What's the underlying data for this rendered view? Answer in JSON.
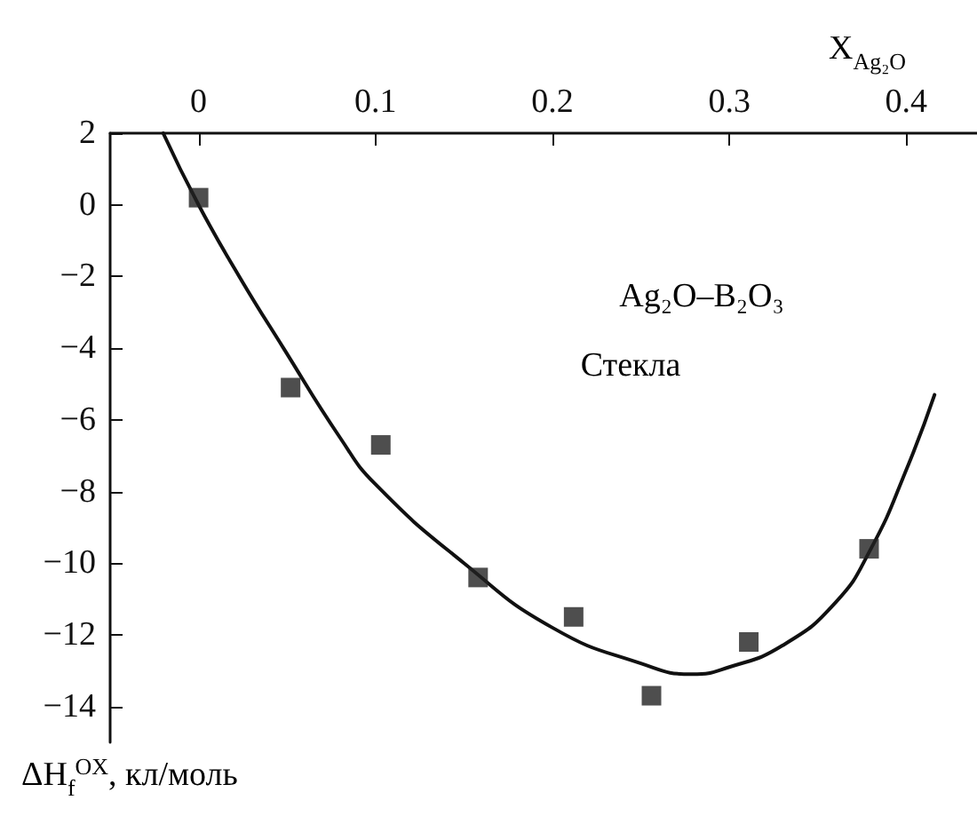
{
  "chart_data": {
    "type": "scatter",
    "xlabel": "X$_{Ag₂O}$",
    "ylabel": "ΔH$_{f}$$^{OX}$, кл/моль",
    "annotations": [
      "Ag₂O–B₂O₃",
      "Стекла"
    ],
    "x": [
      0,
      0.052,
      0.103,
      0.158,
      0.212,
      0.256,
      0.311,
      0.379
    ],
    "series": [
      {
        "color": "#222222",
        "values": [
          0.2,
          -5.1,
          -6.7,
          -10.4,
          -11.5,
          -13.7,
          -12.2,
          -9.6
        ]
      },
      {
        "type": "line",
        "color": "#111111",
        "marker": "none",
        "x": [
          -0.02,
          0,
          0.023,
          0.048,
          0.08,
          0.1,
          0.15,
          0.2,
          0.25,
          0.279,
          0.3,
          0.33,
          0.36,
          0.38,
          0.4,
          0.416
        ],
        "values": [
          2,
          0,
          -2,
          -4,
          -6.5,
          -7.8,
          -10,
          -11.8,
          -12.8,
          -13.1,
          -12.9,
          -12.3,
          -11.1,
          -9.6,
          -7.4,
          -5.3
        ]
      }
    ],
    "marker": "square",
    "xlim": [
      -0.05,
      0.44
    ],
    "ylim": [
      -15,
      2
    ],
    "xticks": [
      0,
      0.1,
      0.2,
      0.3,
      0.4
    ],
    "yticks": [
      2,
      0,
      -2,
      -4,
      -6,
      -8,
      -10,
      -12,
      -14
    ],
    "grid": false
  }
}
